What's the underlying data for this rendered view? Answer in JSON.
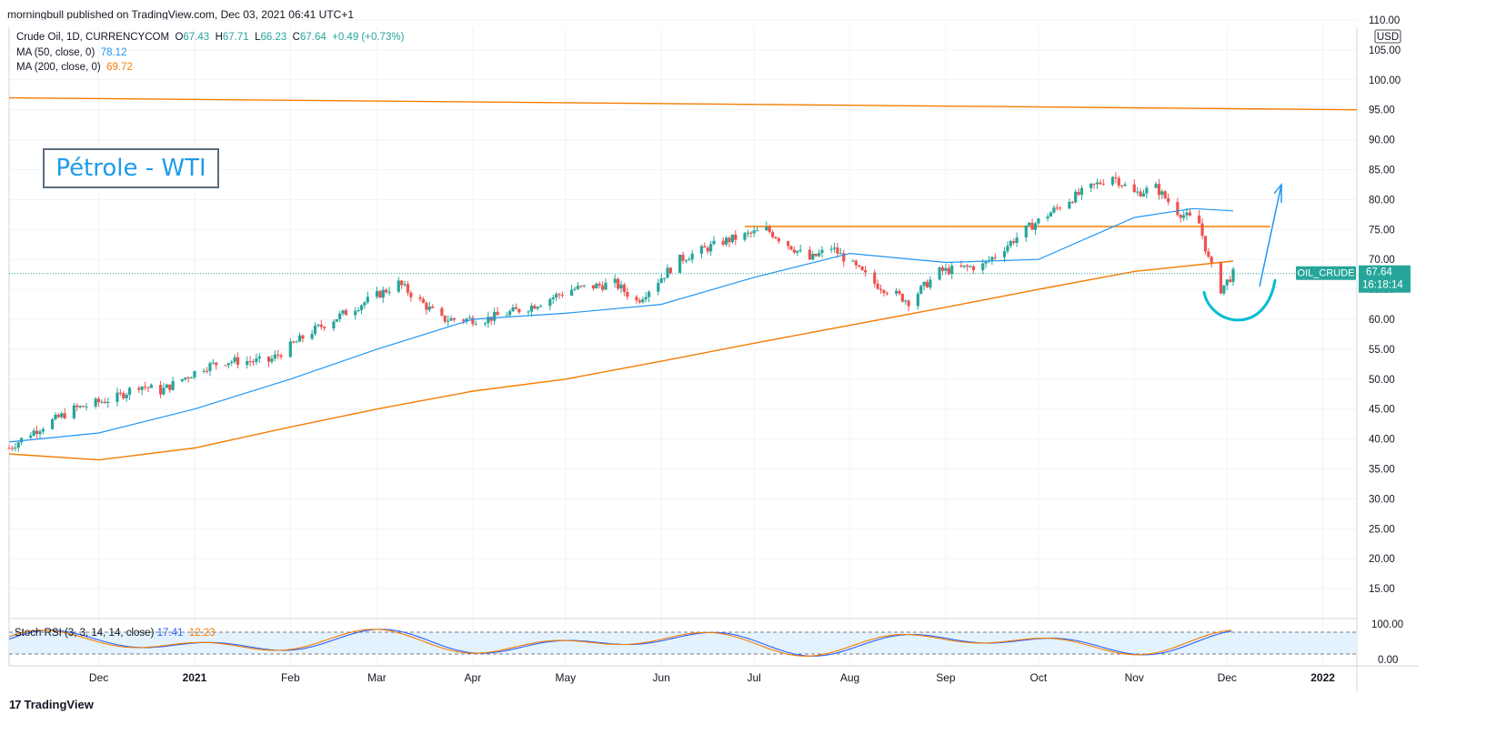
{
  "header": {
    "published_text": "morningbull published on TradingView.com, Dec 03, 2021 06:41 UTC+1"
  },
  "legend": {
    "symbol": "Crude Oil, 1D, CURRENCYCOM",
    "o_label": "O",
    "o_value": "67.43",
    "h_label": "H",
    "h_value": "67.71",
    "l_label": "L",
    "l_value": "66.23",
    "c_label": "C",
    "c_value": "67.64",
    "change": "+0.49 (+0.73%)",
    "ma50_label": "MA (50, close, 0)",
    "ma50_value": "78.12",
    "ma200_label": "MA (200, close, 0)",
    "ma200_value": "69.72"
  },
  "annotation": {
    "title": "Pétrole - WTI"
  },
  "price_tag": {
    "symbol": "OIL_CRUDE",
    "price": "67.64",
    "countdown": "16:18:14"
  },
  "stoch": {
    "label": "Stoch RSI (3, 3, 14, 14, close)",
    "k_value": "17.41",
    "d_value": "12.23",
    "axis_labels": [
      "100.00",
      "0.00"
    ]
  },
  "footer": {
    "brand": "TradingView"
  },
  "colors": {
    "up": "#26a69a",
    "down": "#ef5350",
    "ma50": "#2196f3",
    "ma200": "#f57c00",
    "annotation": "#1e9be8",
    "stoch_bg": "#e3f2fd"
  },
  "chart_data": {
    "type": "line",
    "title": "Crude Oil, 1D, CURRENCYCOM",
    "currency": "USD",
    "y_ticks": [
      "110.00",
      "105.00",
      "100.00",
      "95.00",
      "90.00",
      "85.00",
      "80.00",
      "75.00",
      "70.00",
      "65.00",
      "60.00",
      "55.00",
      "50.00",
      "45.00",
      "40.00",
      "35.00",
      "30.00",
      "25.00",
      "20.00",
      "15.00"
    ],
    "ylim": [
      10,
      110
    ],
    "x_ticks": [
      {
        "label": "Dec",
        "date": "2020-12-01"
      },
      {
        "label": "2021",
        "date": "2021-01-01"
      },
      {
        "label": "Feb",
        "date": "2021-02-01"
      },
      {
        "label": "Mar",
        "date": "2021-03-01"
      },
      {
        "label": "Apr",
        "date": "2021-04-01"
      },
      {
        "label": "May",
        "date": "2021-05-01"
      },
      {
        "label": "Jun",
        "date": "2021-06-01"
      },
      {
        "label": "Jul",
        "date": "2021-07-01"
      },
      {
        "label": "Aug",
        "date": "2021-08-01"
      },
      {
        "label": "Sep",
        "date": "2021-09-01"
      },
      {
        "label": "Oct",
        "date": "2021-10-01"
      },
      {
        "label": "Nov",
        "date": "2021-11-01"
      },
      {
        "label": "Dec",
        "date": "2021-12-01"
      },
      {
        "label": "2022",
        "date": "2022-01-01"
      }
    ],
    "x_range": [
      "2020-11-02",
      "2022-01-12"
    ],
    "series": [
      {
        "name": "Crude Oil",
        "dates": [
          "2020-11-02",
          "2020-11-09",
          "2020-11-16",
          "2020-11-23",
          "2020-11-30",
          "2020-12-07",
          "2020-12-14",
          "2020-12-21",
          "2021-01-04",
          "2021-01-11",
          "2021-01-25",
          "2021-02-08",
          "2021-02-22",
          "2021-03-08",
          "2021-03-22",
          "2021-04-05",
          "2021-04-19",
          "2021-05-03",
          "2021-05-17",
          "2021-05-24",
          "2021-06-07",
          "2021-06-21",
          "2021-07-05",
          "2021-07-19",
          "2021-07-26",
          "2021-08-09",
          "2021-08-20",
          "2021-08-30",
          "2021-09-13",
          "2021-09-27",
          "2021-10-11",
          "2021-10-25",
          "2021-11-01",
          "2021-11-08",
          "2021-11-15",
          "2021-11-22",
          "2021-11-25",
          "2021-11-29",
          "2021-12-03"
        ],
        "values": [
          38.5,
          41,
          43,
          45,
          46,
          47,
          49,
          48,
          52,
          53,
          53,
          58,
          62,
          66,
          60,
          60,
          62,
          65,
          66,
          63,
          70,
          73,
          75,
          70,
          72,
          66,
          63,
          68,
          69,
          75,
          80,
          84,
          81,
          82,
          78,
          76,
          70,
          65,
          67.64
        ]
      },
      {
        "name": "MA (50, close, 0)",
        "dates": [
          "2020-11-02",
          "2020-12-01",
          "2021-01-01",
          "2021-02-01",
          "2021-03-01",
          "2021-04-01",
          "2021-05-01",
          "2021-06-01",
          "2021-07-01",
          "2021-08-01",
          "2021-09-01",
          "2021-10-01",
          "2021-11-01",
          "2021-11-20",
          "2021-12-03"
        ],
        "values": [
          39.5,
          41,
          45,
          50,
          55,
          60,
          61,
          62.5,
          67,
          71,
          69.5,
          70,
          77,
          78.5,
          78.12
        ]
      },
      {
        "name": "MA (200, close, 0)",
        "dates": [
          "2020-11-02",
          "2020-12-01",
          "2021-01-01",
          "2021-02-01",
          "2021-03-01",
          "2021-04-01",
          "2021-05-01",
          "2021-06-01",
          "2021-07-01",
          "2021-08-01",
          "2021-09-01",
          "2021-10-01",
          "2021-11-01",
          "2021-12-03"
        ],
        "values": [
          37.5,
          36.5,
          38.5,
          42,
          45,
          48,
          50,
          53,
          56,
          59,
          62,
          65,
          68,
          69.72
        ]
      }
    ],
    "horizontal_lines": [
      {
        "from": "2020-11-02",
        "to": "2022-01-12",
        "values": [
          97,
          95
        ]
      },
      {
        "from": "2021-06-28",
        "to": "2021-12-15",
        "values": [
          75.5,
          75.5
        ]
      }
    ],
    "stoch_rsi": {
      "k": 17.41,
      "d": 12.23,
      "upper_band": 80,
      "lower_band": 20,
      "range": [
        0,
        100
      ]
    }
  }
}
